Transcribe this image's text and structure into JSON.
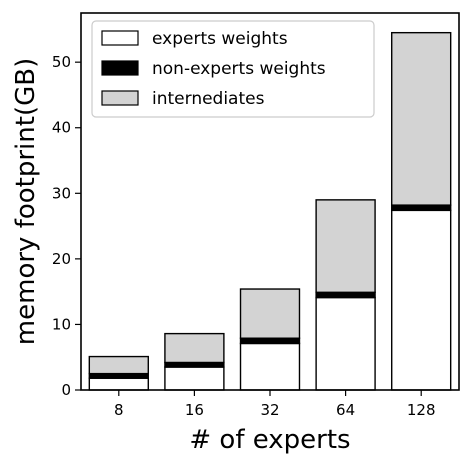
{
  "chart_data": {
    "type": "bar",
    "stacked": true,
    "categories": [
      "8",
      "16",
      "32",
      "64",
      "128"
    ],
    "series": [
      {
        "name": "experts weights",
        "values": [
          1.8,
          3.5,
          7.1,
          14.1,
          27.4
        ],
        "color": "#ffffff"
      },
      {
        "name": "non-experts weights",
        "values": [
          0.7,
          0.7,
          0.8,
          0.8,
          0.8
        ],
        "color": "#000000"
      },
      {
        "name": "internediates",
        "values": [
          2.6,
          4.4,
          7.5,
          14.1,
          26.3
        ],
        "color": "#d3d3d3"
      }
    ],
    "xlabel": "# of experts",
    "ylabel": "memory footprint(GB)",
    "ylim": [
      0,
      57.5
    ],
    "yticks": [
      0,
      10,
      20,
      30,
      40,
      50
    ],
    "grid": false,
    "legend_position": "top-left"
  }
}
